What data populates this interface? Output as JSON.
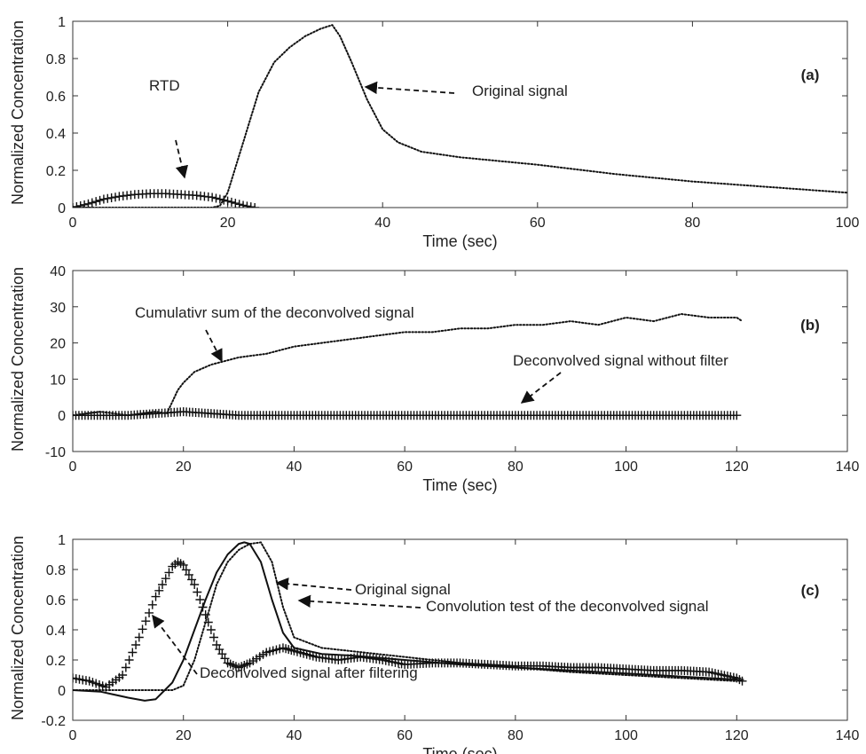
{
  "figure": {
    "description_free": true
  },
  "chart_data": [
    {
      "panel": "(a)",
      "type": "line",
      "xlabel": "Time (sec)",
      "ylabel": "Normalized Concentration",
      "xlim": [
        0,
        100
      ],
      "ylim": [
        0,
        1
      ],
      "xticks": [
        0,
        20,
        40,
        60,
        80,
        100
      ],
      "yticks": [
        0,
        0.2,
        0.4,
        0.6,
        0.8,
        1
      ],
      "ytick_labels": [
        "0",
        "0.2",
        "0.4",
        "0.6",
        "0.8",
        "1"
      ],
      "series": [
        {
          "style": "dotted",
          "x": [
            0,
            10,
            18,
            19,
            20,
            22,
            24,
            26,
            28,
            30,
            32,
            33.5,
            34.5,
            36,
            38,
            40,
            42,
            45,
            50,
            60,
            70,
            80,
            90,
            100
          ],
          "y": [
            0,
            0,
            0,
            0.01,
            0.08,
            0.35,
            0.62,
            0.78,
            0.86,
            0.92,
            0.96,
            0.98,
            0.92,
            0.78,
            0.58,
            0.42,
            0.35,
            0.3,
            0.27,
            0.23,
            0.18,
            0.14,
            0.11,
            0.08
          ]
        },
        {
          "style": "plus-markers",
          "x": [
            0,
            2,
            4,
            6,
            8,
            10,
            12,
            14,
            16,
            18,
            20,
            22,
            23.5
          ],
          "y": [
            0.0,
            0.02,
            0.045,
            0.06,
            0.07,
            0.075,
            0.075,
            0.07,
            0.065,
            0.055,
            0.035,
            0.012,
            0.0
          ]
        }
      ],
      "annotations": [
        {
          "text": "RTD",
          "at": [
            15.5,
            0.16
          ]
        },
        {
          "text": "Original signal",
          "at": [
            37.5,
            0.72
          ]
        }
      ]
    },
    {
      "panel": "(b)",
      "type": "line",
      "xlabel": "Time (sec)",
      "ylabel": "Normalized Concentration",
      "xlim": [
        0,
        140
      ],
      "ylim": [
        -10,
        40
      ],
      "xticks": [
        0,
        20,
        40,
        60,
        80,
        100,
        120,
        140
      ],
      "yticks": [
        -10,
        0,
        10,
        20,
        30,
        40
      ],
      "ytick_labels": [
        "-10",
        "0",
        "10",
        "20",
        "30",
        "40"
      ],
      "series": [
        {
          "style": "dotted",
          "x": [
            0,
            5,
            10,
            15,
            17,
            19,
            20,
            22,
            25,
            30,
            35,
            40,
            45,
            50,
            55,
            60,
            65,
            70,
            75,
            80,
            85,
            90,
            95,
            100,
            105,
            110,
            115,
            120,
            121
          ],
          "y": [
            0,
            1,
            0,
            1,
            0.5,
            7,
            9,
            12,
            14,
            16,
            17,
            19,
            20,
            21,
            22,
            23,
            23,
            24,
            24,
            25,
            25,
            26,
            25,
            27,
            26,
            28,
            27,
            27,
            26
          ]
        },
        {
          "style": "plus-markers",
          "x": [
            0,
            10,
            20,
            30,
            40,
            50,
            60,
            70,
            80,
            90,
            100,
            110,
            120
          ],
          "y": [
            0,
            0,
            1,
            0,
            0,
            0,
            0,
            0,
            0,
            0,
            0,
            0,
            0
          ]
        }
      ],
      "annotations": [
        {
          "text": "Cumulativr sum of the deconvolved signal",
          "at": [
            27,
            15.5
          ]
        },
        {
          "text": "Deconvolved signal without filter",
          "at": [
            81,
            2.5
          ]
        }
      ]
    },
    {
      "panel": "(c)",
      "type": "line",
      "xlabel": "Time (sec)",
      "ylabel": "Normalized Concentration",
      "xlim": [
        0,
        140
      ],
      "ylim": [
        -0.2,
        1
      ],
      "xticks": [
        0,
        20,
        40,
        60,
        80,
        100,
        120,
        140
      ],
      "yticks": [
        -0.2,
        0,
        0.2,
        0.4,
        0.6,
        0.8,
        1
      ],
      "ytick_labels": [
        "-0.2",
        "0",
        "0.2",
        "0.4",
        "0.6",
        "0.8",
        "1"
      ],
      "series": [
        {
          "style": "dotted",
          "x": [
            0,
            10,
            18,
            20,
            22,
            24,
            26,
            28,
            30,
            32,
            34,
            36,
            38,
            40,
            45,
            50,
            60,
            70,
            80,
            90,
            100,
            110,
            120
          ],
          "y": [
            0,
            0,
            0,
            0.03,
            0.2,
            0.45,
            0.7,
            0.85,
            0.93,
            0.97,
            0.98,
            0.85,
            0.55,
            0.35,
            0.28,
            0.26,
            0.22,
            0.18,
            0.15,
            0.12,
            0.1,
            0.08,
            0.06
          ]
        },
        {
          "style": "solid",
          "x": [
            0,
            5,
            10,
            13,
            15,
            18,
            20,
            22,
            24,
            26,
            28,
            30,
            31,
            32,
            34,
            36,
            38,
            40,
            45,
            50,
            60,
            70,
            80,
            90,
            100,
            110,
            120,
            121
          ],
          "y": [
            0,
            -0.01,
            -0.05,
            -0.07,
            -0.06,
            0.05,
            0.2,
            0.4,
            0.6,
            0.78,
            0.9,
            0.97,
            0.98,
            0.97,
            0.85,
            0.6,
            0.38,
            0.28,
            0.24,
            0.23,
            0.2,
            0.17,
            0.15,
            0.13,
            0.11,
            0.09,
            0.07,
            0.06
          ]
        },
        {
          "style": "plus-markers",
          "x": [
            0,
            3,
            6,
            9,
            12,
            15,
            18,
            19,
            20,
            22,
            24,
            26,
            28,
            30,
            32,
            35,
            38,
            40,
            44,
            48,
            52,
            56,
            60,
            65,
            70,
            75,
            80,
            85,
            90,
            95,
            100,
            105,
            110,
            115,
            120,
            121
          ],
          "y": [
            0.08,
            0.06,
            0.02,
            0.1,
            0.35,
            0.62,
            0.82,
            0.85,
            0.83,
            0.7,
            0.5,
            0.3,
            0.18,
            0.15,
            0.18,
            0.25,
            0.28,
            0.26,
            0.22,
            0.2,
            0.22,
            0.2,
            0.17,
            0.18,
            0.18,
            0.17,
            0.16,
            0.16,
            0.15,
            0.15,
            0.14,
            0.13,
            0.13,
            0.12,
            0.08,
            0.06
          ]
        }
      ],
      "annotations": [
        {
          "text": "Original signal",
          "at": [
            32,
            0.97
          ]
        },
        {
          "text": "Convolution test of the deconvolved signal",
          "at": [
            38,
            0.7
          ]
        },
        {
          "text": "Deconvolved signal after filtering",
          "at": [
            14,
            0.42
          ]
        }
      ]
    }
  ]
}
